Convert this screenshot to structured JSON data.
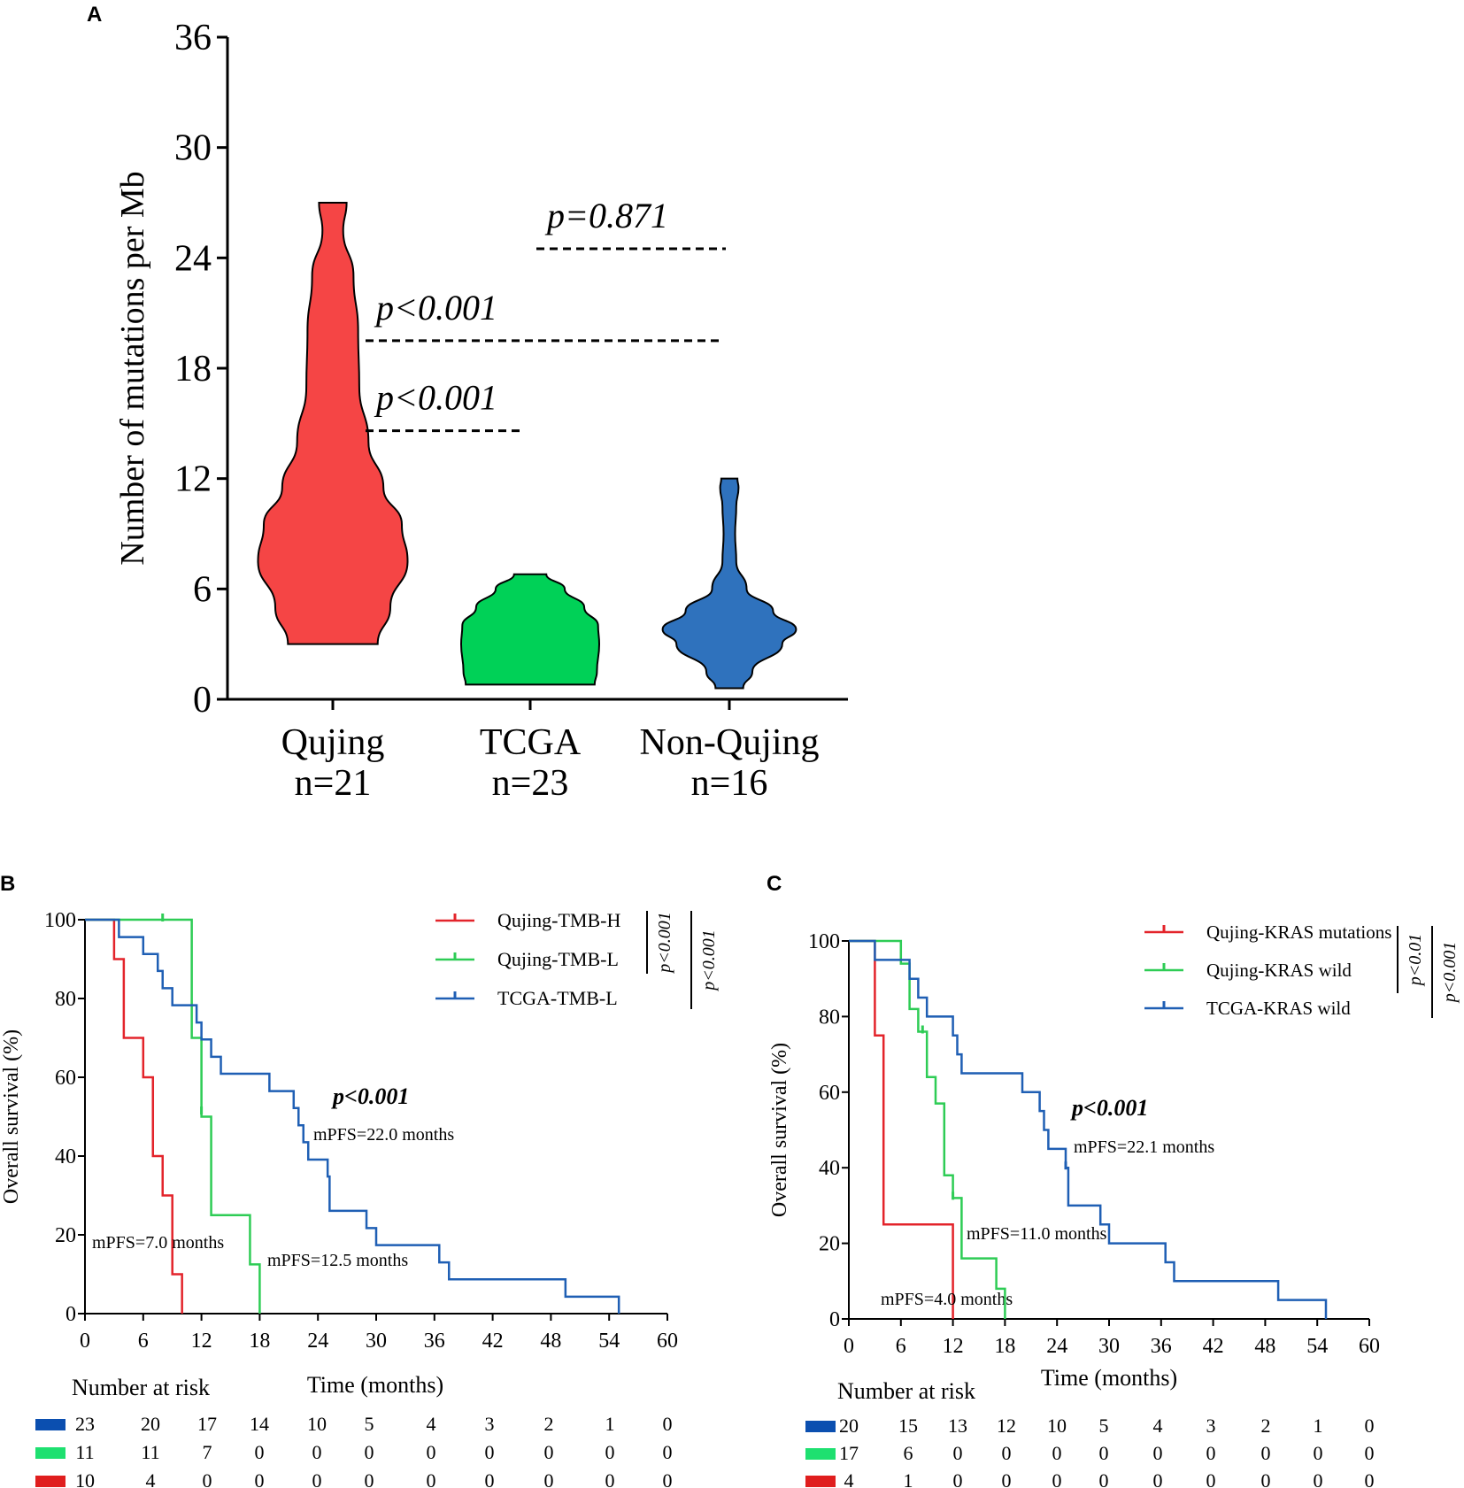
{
  "chart_data": [
    {
      "panel": "A",
      "type": "violin",
      "ylabel": "Number of mutations per Mb",
      "ylim": [
        0,
        36
      ],
      "yticks": [
        0,
        6,
        12,
        18,
        24,
        30,
        36
      ],
      "groups": [
        {
          "name": "Qujing",
          "n_label": "n=21",
          "color": "#f54545",
          "min": 3.0,
          "max": 27.0,
          "profile": [
            [
              3.0,
              0.39
            ],
            [
              5.0,
              0.5
            ],
            [
              7.5,
              0.65
            ],
            [
              9.5,
              0.6
            ],
            [
              11.5,
              0.44
            ],
            [
              14.0,
              0.31
            ],
            [
              17.0,
              0.23
            ],
            [
              20.0,
              0.22
            ],
            [
              23.0,
              0.18
            ],
            [
              25.5,
              0.09
            ],
            [
              27.0,
              0.12
            ]
          ]
        },
        {
          "name": "TCGA",
          "n_label": "n=23",
          "color": "#00d157",
          "min": 0.8,
          "max": 6.8,
          "profile": [
            [
              0.8,
              0.56
            ],
            [
              1.5,
              0.58
            ],
            [
              3.0,
              0.6
            ],
            [
              4.0,
              0.59
            ],
            [
              5.0,
              0.47
            ],
            [
              6.0,
              0.3
            ],
            [
              6.8,
              0.14
            ]
          ]
        },
        {
          "name": "Non-Qujing",
          "n_label": "n=16",
          "color": "#2f72bd",
          "min": 0.6,
          "max": 12.0,
          "profile": [
            [
              0.6,
              0.12
            ],
            [
              1.5,
              0.2
            ],
            [
              3.0,
              0.46
            ],
            [
              3.8,
              0.58
            ],
            [
              4.8,
              0.38
            ],
            [
              6.0,
              0.15
            ],
            [
              7.5,
              0.06
            ],
            [
              9.0,
              0.05
            ],
            [
              10.5,
              0.06
            ],
            [
              11.5,
              0.08
            ],
            [
              12.0,
              0.07
            ]
          ]
        }
      ],
      "comparisons": [
        {
          "label_prefix": "p",
          "label_value": "<0.001",
          "y": 14.6,
          "from": "Qujing",
          "to": "TCGA"
        },
        {
          "label_prefix": "p",
          "label_value": "<0.001",
          "y": 19.5,
          "from": "Qujing",
          "to": "Non-Qujing"
        },
        {
          "label_prefix": "p",
          "label_value": "=0.871",
          "y": 24.5,
          "from": "TCGA",
          "to": "Non-Qujing"
        }
      ]
    },
    {
      "panel": "B",
      "type": "line",
      "ylabel": "Overall survival (%)",
      "xlabel": "Time (months)",
      "xlim": [
        0,
        60
      ],
      "ylim": [
        0,
        100
      ],
      "xticks": [
        0,
        6,
        12,
        18,
        24,
        30,
        36,
        42,
        48,
        54,
        60
      ],
      "yticks": [
        0,
        20,
        40,
        60,
        80,
        100
      ],
      "pvalue_prefix": "p",
      "pvalue_value": "<0.001",
      "legend_pvals": [
        "p<0.001",
        "p<0.001"
      ],
      "risk_title": "Number at risk",
      "series": [
        {
          "name": "Qujing-TMB-H",
          "color": "#e3242b",
          "risk_color": "#e01e1e",
          "steps": [
            [
              0,
              100
            ],
            [
              3,
              90
            ],
            [
              4,
              70
            ],
            [
              6,
              60
            ],
            [
              7,
              40
            ],
            [
              8,
              30
            ],
            [
              9,
              10
            ],
            [
              10,
              0
            ]
          ],
          "censor": [],
          "mpfs": "mPFS=7.0 months",
          "risk": [
            "10",
            "4",
            "0",
            "0",
            "0",
            "0",
            "0",
            "0",
            "0",
            "0",
            "0"
          ]
        },
        {
          "name": "Qujing-TMB-L",
          "color": "#2ecc55",
          "risk_color": "#1ee070",
          "steps": [
            [
              0,
              100
            ],
            [
              11,
              70
            ],
            [
              12,
              50
            ],
            [
              13,
              25
            ],
            [
              17,
              12.5
            ],
            [
              18,
              0
            ]
          ],
          "censor": [
            [
              8,
              100
            ],
            [
              12,
              51
            ]
          ],
          "mpfs": "mPFS=12.5 months",
          "risk": [
            "11",
            "11",
            "7",
            "0",
            "0",
            "0",
            "0",
            "0",
            "0",
            "0",
            "0"
          ]
        },
        {
          "name": "TCGA-TMB-L",
          "color": "#1f5fb4",
          "risk_color": "#0b4fb0",
          "steps": [
            [
              0,
              100
            ],
            [
              3.5,
              95.6
            ],
            [
              6,
              91.3
            ],
            [
              7.5,
              87
            ],
            [
              8,
              82.6
            ],
            [
              9,
              78.3
            ],
            [
              11.5,
              73.9
            ],
            [
              12,
              69.6
            ],
            [
              13,
              65.2
            ],
            [
              14,
              60.9
            ],
            [
              19,
              56.5
            ],
            [
              21.5,
              52.2
            ],
            [
              22,
              47.8
            ],
            [
              22.5,
              43.5
            ],
            [
              23,
              39.1
            ],
            [
              25,
              34.8
            ],
            [
              25.2,
              26.1
            ],
            [
              29,
              21.7
            ],
            [
              30,
              17.4
            ],
            [
              36.5,
              13
            ],
            [
              37.5,
              8.7
            ],
            [
              49.5,
              4.3
            ],
            [
              55,
              0
            ]
          ],
          "censor": [],
          "mpfs": "mPFS=22.0 months",
          "risk": [
            "23",
            "20",
            "17",
            "14",
            "10",
            "5",
            "4",
            "3",
            "2",
            "1",
            "0"
          ]
        }
      ]
    },
    {
      "panel": "C",
      "type": "line",
      "ylabel": "Overall survival (%)",
      "xlabel": "Time (months)",
      "xlim": [
        0,
        60
      ],
      "ylim": [
        0,
        100
      ],
      "xticks": [
        0,
        6,
        12,
        18,
        24,
        30,
        36,
        42,
        48,
        54,
        60
      ],
      "yticks": [
        0,
        20,
        40,
        60,
        80,
        100
      ],
      "pvalue_prefix": "p",
      "pvalue_value": "<0.001",
      "legend_pvals": [
        "p<0.01",
        "p<0.001"
      ],
      "risk_title": "Number at risk",
      "series": [
        {
          "name": "Qujing-KRAS mutations",
          "color": "#e3242b",
          "risk_color": "#e01e1e",
          "steps": [
            [
              0,
              100
            ],
            [
              3,
              75
            ],
            [
              4,
              25
            ],
            [
              12,
              0
            ]
          ],
          "censor": [],
          "mpfs": "mPFS=4.0 months",
          "risk": [
            "4",
            "1",
            "0",
            "0",
            "0",
            "0",
            "0",
            "0",
            "0",
            "0",
            "0"
          ]
        },
        {
          "name": "Qujing-KRAS wild",
          "color": "#2ecc55",
          "risk_color": "#1ee070",
          "steps": [
            [
              0,
              100
            ],
            [
              6,
              94
            ],
            [
              7,
              82
            ],
            [
              8,
              76
            ],
            [
              9,
              64
            ],
            [
              10,
              57
            ],
            [
              11,
              38
            ],
            [
              12,
              32
            ],
            [
              13,
              16
            ],
            [
              17,
              8
            ],
            [
              18,
              0
            ]
          ],
          "censor": [
            [
              8.5,
              76
            ],
            [
              12,
              32
            ]
          ],
          "mpfs": "mPFS=11.0 months",
          "risk": [
            "17",
            "6",
            "0",
            "0",
            "0",
            "0",
            "0",
            "0",
            "0",
            "0",
            "0"
          ]
        },
        {
          "name": "TCGA-KRAS wild",
          "color": "#1f5fb4",
          "risk_color": "#0b4fb0",
          "steps": [
            [
              0,
              100
            ],
            [
              3,
              95
            ],
            [
              7,
              90
            ],
            [
              8,
              85
            ],
            [
              9,
              80
            ],
            [
              12,
              75
            ],
            [
              12.5,
              70
            ],
            [
              13,
              65
            ],
            [
              20,
              60
            ],
            [
              22,
              55
            ],
            [
              22.5,
              50
            ],
            [
              23,
              45
            ],
            [
              25,
              40
            ],
            [
              25.3,
              30
            ],
            [
              29,
              25
            ],
            [
              30,
              20
            ],
            [
              36.5,
              15
            ],
            [
              37.5,
              10
            ],
            [
              49.5,
              5
            ],
            [
              55,
              0
            ]
          ],
          "censor": [
            [
              25,
              40
            ]
          ],
          "mpfs": "mPFS=22.1 months",
          "risk": [
            "20",
            "15",
            "13",
            "12",
            "10",
            "5",
            "4",
            "3",
            "2",
            "1",
            "0"
          ]
        }
      ]
    }
  ],
  "panel_labels": [
    "A",
    "B",
    "C"
  ]
}
